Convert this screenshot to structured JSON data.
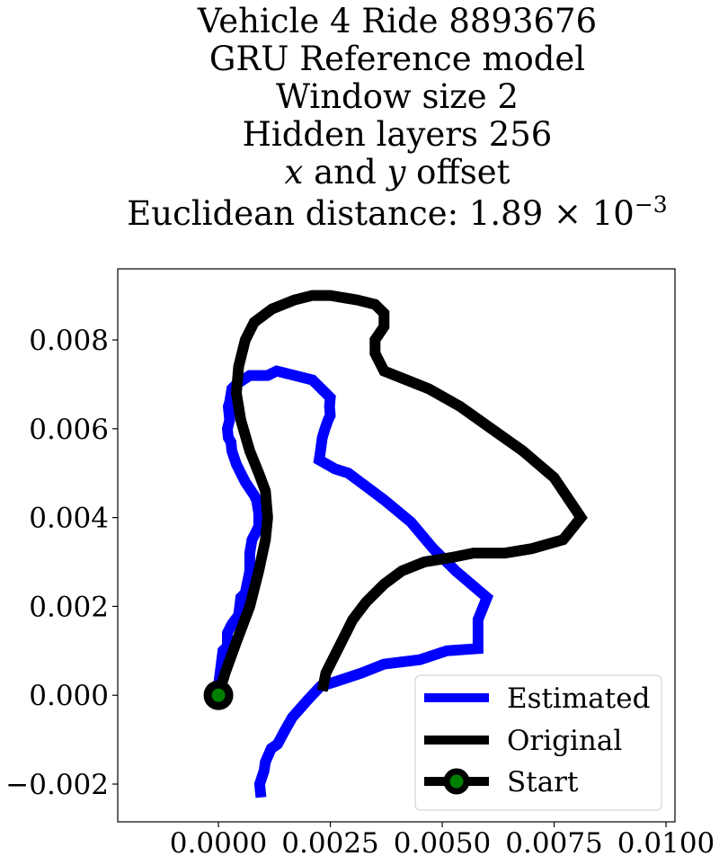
{
  "chart_data": {
    "type": "line",
    "title_lines": [
      "Vehicle 4 Ride 8893676",
      "GRU Reference model",
      "Window size 2",
      "Hidden layers 256"
    ],
    "title_offset_var_x": "x",
    "title_offset_and": " and ",
    "title_offset_var_y": "y",
    "title_offset_suffix": " offset",
    "title_distance_prefix": "Euclidean distance: 1.89 × 10",
    "title_distance_exponent": "−3",
    "xlim": [
      -0.00225,
      0.0102
    ],
    "ylim": [
      -0.00285,
      0.0096
    ],
    "xticks": [
      {
        "value": 0.0,
        "label": "0.0000"
      },
      {
        "value": 0.0025,
        "label": "0.0025"
      },
      {
        "value": 0.005,
        "label": "0.0050"
      },
      {
        "value": 0.0075,
        "label": "0.0075"
      },
      {
        "value": 0.01,
        "label": "0.0100"
      }
    ],
    "yticks": [
      {
        "value": -0.002,
        "label": "−0.002"
      },
      {
        "value": 0.0,
        "label": "0.000"
      },
      {
        "value": 0.002,
        "label": "0.002"
      },
      {
        "value": 0.004,
        "label": "0.004"
      },
      {
        "value": 0.006,
        "label": "0.006"
      },
      {
        "value": 0.008,
        "label": "0.008"
      }
    ],
    "grid": false,
    "legend_position": "lower-right",
    "series": [
      {
        "name": "Estimated",
        "color": "#0000ff",
        "points": [
          [
            0.00095,
            -0.0023
          ],
          [
            0.00092,
            -0.002
          ],
          [
            0.00102,
            -0.0017
          ],
          [
            0.00105,
            -0.0015
          ],
          [
            0.00118,
            -0.0012
          ],
          [
            0.00132,
            -0.0011
          ],
          [
            0.00148,
            -0.0008
          ],
          [
            0.00165,
            -0.0005
          ],
          [
            0.002,
            -0.0001
          ],
          [
            0.00228,
            0.0002
          ],
          [
            0.0026,
            0.0003
          ],
          [
            0.0032,
            0.0005
          ],
          [
            0.0037,
            0.0007
          ],
          [
            0.0045,
            0.0008
          ],
          [
            0.0051,
            0.001
          ],
          [
            0.0058,
            0.00105
          ],
          [
            0.0058,
            0.0017
          ],
          [
            0.006,
            0.0022
          ],
          [
            0.0053,
            0.0028
          ],
          [
            0.0048,
            0.0033
          ],
          [
            0.0043,
            0.0039
          ],
          [
            0.0037,
            0.0044
          ],
          [
            0.0033,
            0.0047
          ],
          [
            0.0029,
            0.005
          ],
          [
            0.0026,
            0.0051
          ],
          [
            0.00225,
            0.0053
          ],
          [
            0.00228,
            0.0055
          ],
          [
            0.00232,
            0.0058
          ],
          [
            0.00238,
            0.006
          ],
          [
            0.00245,
            0.0062
          ],
          [
            0.0025,
            0.0063
          ],
          [
            0.00248,
            0.0065
          ],
          [
            0.0025,
            0.0067
          ],
          [
            0.0023,
            0.0069
          ],
          [
            0.0021,
            0.0071
          ],
          [
            0.0017,
            0.0072
          ],
          [
            0.0013,
            0.0073
          ],
          [
            0.0011,
            0.0072
          ],
          [
            0.0007,
            0.0072
          ],
          [
            0.0004,
            0.007
          ],
          [
            0.0003,
            0.0069
          ],
          [
            0.00025,
            0.0066
          ],
          [
            0.00022,
            0.0065
          ],
          [
            0.00025,
            0.0062
          ],
          [
            0.0002,
            0.006
          ],
          [
            0.00022,
            0.0058
          ],
          [
            0.00028,
            0.0057
          ],
          [
            0.0003,
            0.0055
          ],
          [
            0.0004,
            0.0052
          ],
          [
            0.0006,
            0.0048
          ],
          [
            0.0008,
            0.0045
          ],
          [
            0.00085,
            0.0044
          ],
          [
            0.0009,
            0.0041
          ],
          [
            0.0009,
            0.0038
          ],
          [
            0.00075,
            0.0035
          ],
          [
            0.0007,
            0.0032
          ],
          [
            0.0007,
            0.0028
          ],
          [
            0.0006,
            0.0023
          ],
          [
            0.0005,
            0.0022
          ],
          [
            0.00045,
            0.0018
          ],
          [
            0.0003,
            0.0016
          ],
          [
            0.0002,
            0.0014
          ],
          [
            0.0002,
            0.0011
          ],
          [
            0.0001,
            0.001
          ],
          [
            5e-05,
            0.0006
          ],
          [
            0.0,
            0.0002
          ],
          [
            0.0,
            0.0
          ]
        ]
      },
      {
        "name": "Original",
        "color": "#000000",
        "points": [
          [
            0.0,
            0.0
          ],
          [
            0.00015,
            0.0005
          ],
          [
            0.0004,
            0.0012
          ],
          [
            0.0007,
            0.002
          ],
          [
            0.0009,
            0.0028
          ],
          [
            0.00105,
            0.0035
          ],
          [
            0.0011,
            0.004
          ],
          [
            0.00105,
            0.0046
          ],
          [
            0.0009,
            0.005
          ],
          [
            0.0007,
            0.0055
          ],
          [
            0.0005,
            0.0062
          ],
          [
            0.0004,
            0.0068
          ],
          [
            0.00045,
            0.0074
          ],
          [
            0.0006,
            0.008
          ],
          [
            0.0008,
            0.0084
          ],
          [
            0.0012,
            0.0087
          ],
          [
            0.0017,
            0.0089
          ],
          [
            0.0021,
            0.009
          ],
          [
            0.0025,
            0.009
          ],
          [
            0.0031,
            0.0089
          ],
          [
            0.0035,
            0.0088
          ],
          [
            0.0037,
            0.0086
          ],
          [
            0.0037,
            0.0083
          ],
          [
            0.0035,
            0.008
          ],
          [
            0.0035,
            0.0077
          ],
          [
            0.0037,
            0.0073
          ],
          [
            0.0042,
            0.0071
          ],
          [
            0.0047,
            0.0069
          ],
          [
            0.0054,
            0.0065
          ],
          [
            0.0061,
            0.006
          ],
          [
            0.0068,
            0.0055
          ],
          [
            0.0075,
            0.0049
          ],
          [
            0.0081,
            0.004
          ],
          [
            0.0077,
            0.0035
          ],
          [
            0.007,
            0.0033
          ],
          [
            0.0064,
            0.0032
          ],
          [
            0.0057,
            0.0032
          ],
          [
            0.0052,
            0.0031
          ],
          [
            0.0046,
            0.003
          ],
          [
            0.0041,
            0.0028
          ],
          [
            0.0037,
            0.0025
          ],
          [
            0.0033,
            0.0021
          ],
          [
            0.003,
            0.0017
          ],
          [
            0.0028,
            0.0013
          ],
          [
            0.00255,
            0.0008
          ],
          [
            0.0024,
            0.0005
          ],
          [
            0.00232,
            0.0001
          ]
        ]
      }
    ],
    "start_point": {
      "name": "Start",
      "x": 0.0,
      "y": 0.0,
      "color": "#008000",
      "edge_color": "#000000"
    }
  }
}
